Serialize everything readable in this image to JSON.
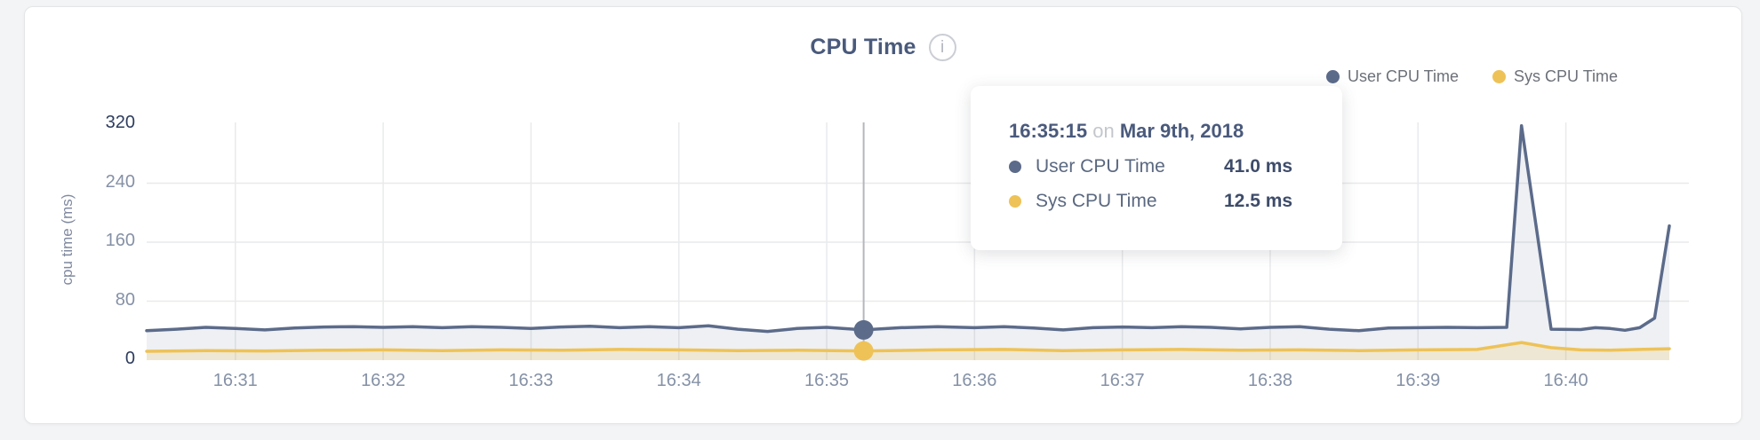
{
  "panel": {
    "title": "CPU Time",
    "info_glyph": "i"
  },
  "legend": [
    {
      "label": "User CPU Time",
      "color": "#5c6b8a"
    },
    {
      "label": "Sys CPU Time",
      "color": "#eec257"
    }
  ],
  "tooltip": {
    "time": "16:35:15",
    "conjunction": "on",
    "date": "Mar 9th, 2018",
    "rows": [
      {
        "label": "User CPU Time",
        "value": "41.0 ms",
        "color": "#5c6b8a"
      },
      {
        "label": "Sys CPU Time",
        "value": "12.5 ms",
        "color": "#eec257"
      }
    ]
  },
  "chart_data": {
    "type": "area",
    "title": "CPU Time",
    "xlabel": "",
    "ylabel": "cpu time (ms)",
    "ylim": [
      0,
      320
    ],
    "yticks": [
      0,
      80,
      160,
      240,
      320
    ],
    "xticks": [
      "16:31",
      "16:32",
      "16:33",
      "16:34",
      "16:35",
      "16:36",
      "16:37",
      "16:38",
      "16:39",
      "16:40"
    ],
    "x_range": [
      "16:30:24",
      "16:40:42"
    ],
    "grid": true,
    "legend_position": "top-right",
    "hover": {
      "time": "16:35:15",
      "date": "Mar 9th, 2018",
      "values": [
        41.0,
        12.5
      ]
    },
    "series": [
      {
        "id": "user-cpu-time",
        "name": "User CPU Time",
        "color": "#5c6b8a",
        "fill": "rgba(91,106,137,0.10)",
        "points": [
          [
            "16:30:24",
            40
          ],
          [
            "16:30:36",
            42
          ],
          [
            "16:30:48",
            44.5
          ],
          [
            "16:31:00",
            43
          ],
          [
            "16:31:12",
            41
          ],
          [
            "16:31:24",
            43.5
          ],
          [
            "16:31:36",
            45
          ],
          [
            "16:31:48",
            45.5
          ],
          [
            "16:32:00",
            44.5
          ],
          [
            "16:32:12",
            45.5
          ],
          [
            "16:32:24",
            44
          ],
          [
            "16:32:36",
            45.5
          ],
          [
            "16:32:48",
            44.5
          ],
          [
            "16:33:00",
            43
          ],
          [
            "16:33:12",
            45
          ],
          [
            "16:33:24",
            46
          ],
          [
            "16:33:36",
            44
          ],
          [
            "16:33:48",
            45.5
          ],
          [
            "16:34:00",
            44
          ],
          [
            "16:34:12",
            46.5
          ],
          [
            "16:34:24",
            42
          ],
          [
            "16:34:36",
            39
          ],
          [
            "16:34:48",
            43
          ],
          [
            "16:35:00",
            44.5
          ],
          [
            "16:35:15",
            41
          ],
          [
            "16:35:30",
            44
          ],
          [
            "16:35:45",
            45.5
          ],
          [
            "16:36:00",
            44
          ],
          [
            "16:36:12",
            45.5
          ],
          [
            "16:36:24",
            43.5
          ],
          [
            "16:36:36",
            41
          ],
          [
            "16:36:48",
            44
          ],
          [
            "16:37:00",
            45
          ],
          [
            "16:37:12",
            44
          ],
          [
            "16:37:24",
            45.5
          ],
          [
            "16:37:36",
            44.5
          ],
          [
            "16:37:48",
            42.5
          ],
          [
            "16:38:00",
            44.5
          ],
          [
            "16:38:12",
            45.5
          ],
          [
            "16:38:24",
            42
          ],
          [
            "16:38:36",
            40
          ],
          [
            "16:38:48",
            43.5
          ],
          [
            "16:39:00",
            44
          ],
          [
            "16:39:12",
            44.5
          ],
          [
            "16:39:24",
            44
          ],
          [
            "16:39:36",
            44.5
          ],
          [
            "16:39:42",
            318
          ],
          [
            "16:39:54",
            42
          ],
          [
            "16:40:06",
            41.5
          ],
          [
            "16:40:12",
            44
          ],
          [
            "16:40:18",
            43
          ],
          [
            "16:40:24",
            40.5
          ],
          [
            "16:40:30",
            44
          ],
          [
            "16:40:36",
            57
          ],
          [
            "16:40:42",
            182
          ]
        ]
      },
      {
        "id": "sys-cpu-time",
        "name": "Sys CPU Time",
        "color": "#eec257",
        "fill": "rgba(238,194,87,0.20)",
        "points": [
          [
            "16:30:24",
            12
          ],
          [
            "16:30:48",
            13
          ],
          [
            "16:31:12",
            12.5
          ],
          [
            "16:31:36",
            13.5
          ],
          [
            "16:32:00",
            14
          ],
          [
            "16:32:24",
            13
          ],
          [
            "16:32:48",
            14
          ],
          [
            "16:33:12",
            13.5
          ],
          [
            "16:33:36",
            14.5
          ],
          [
            "16:34:00",
            14
          ],
          [
            "16:34:24",
            13
          ],
          [
            "16:34:48",
            13.5
          ],
          [
            "16:35:15",
            12.5
          ],
          [
            "16:35:45",
            14
          ],
          [
            "16:36:12",
            14.5
          ],
          [
            "16:36:36",
            13
          ],
          [
            "16:37:00",
            14
          ],
          [
            "16:37:24",
            14.5
          ],
          [
            "16:37:48",
            13.5
          ],
          [
            "16:38:12",
            14
          ],
          [
            "16:38:36",
            13
          ],
          [
            "16:39:00",
            14
          ],
          [
            "16:39:24",
            14.5
          ],
          [
            "16:39:42",
            24
          ],
          [
            "16:39:54",
            17
          ],
          [
            "16:40:06",
            14
          ],
          [
            "16:40:18",
            13.5
          ],
          [
            "16:40:30",
            14.5
          ],
          [
            "16:40:42",
            15.5
          ]
        ]
      }
    ]
  }
}
